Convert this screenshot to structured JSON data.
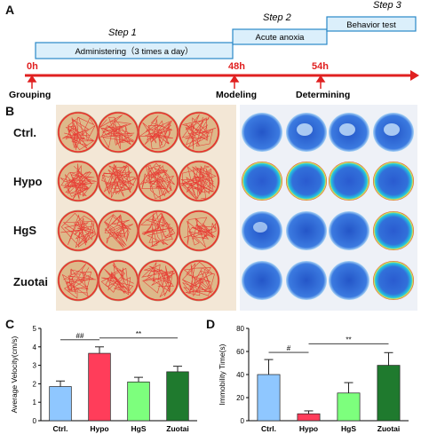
{
  "panels": {
    "A": "A",
    "B": "B",
    "C": "C",
    "D": "D"
  },
  "timeline": {
    "steps": [
      {
        "title": "Step 1",
        "label": "Administering（3 times a day）"
      },
      {
        "title": "Step 2",
        "label": "Acute anoxia"
      },
      {
        "title": "Step 3",
        "label": "Behavior test"
      }
    ],
    "times": [
      "0h",
      "48h",
      "54h"
    ],
    "events": [
      "Grouping",
      "Modeling",
      "Determining"
    ]
  },
  "row_labels": [
    "Ctrl.",
    "Hypo",
    "HgS",
    "Zuotai"
  ],
  "colors": {
    "timeline_red": "#e02020",
    "box_fill": "#dbeffb",
    "box_stroke": "#2a88c8",
    "track_dish": "#ddb98a",
    "track_line": "#e8332e",
    "heat_blue": "#2b5fd0"
  },
  "chart_data": [
    {
      "type": "bar",
      "title": "",
      "xlabel": "",
      "ylabel": "Average Velocity(cm/s)",
      "categories": [
        "Ctrl.",
        "Hypo",
        "HgS",
        "Zuotai"
      ],
      "values": [
        1.85,
        3.65,
        2.1,
        2.65
      ],
      "errors": [
        0.3,
        0.35,
        0.25,
        0.3
      ],
      "colors": [
        "#8fc7ff",
        "#ff3d5a",
        "#7dff7d",
        "#1f7a2e"
      ],
      "ylim": [
        0,
        5
      ],
      "yticks": [
        "0",
        "1",
        "2",
        "3",
        "4",
        "5"
      ],
      "annotations": [
        {
          "text": "##",
          "from": 0,
          "to": 1
        },
        {
          "text": "**",
          "from": 1,
          "to": 3
        }
      ]
    },
    {
      "type": "bar",
      "title": "",
      "xlabel": "",
      "ylabel": "Immobility Time(s)",
      "categories": [
        "Ctrl.",
        "Hypo",
        "HgS",
        "Zuotai"
      ],
      "values": [
        40,
        6,
        24,
        48
      ],
      "errors": [
        13,
        2.5,
        9,
        11
      ],
      "colors": [
        "#8fc7ff",
        "#ff3d5a",
        "#7dff7d",
        "#1f7a2e"
      ],
      "ylim": [
        0,
        80
      ],
      "yticks": [
        "0",
        "20",
        "40",
        "60",
        "80"
      ],
      "annotations": [
        {
          "text": "#",
          "from": 0,
          "to": 1
        },
        {
          "text": "**",
          "from": 1,
          "to": 3
        }
      ]
    }
  ]
}
